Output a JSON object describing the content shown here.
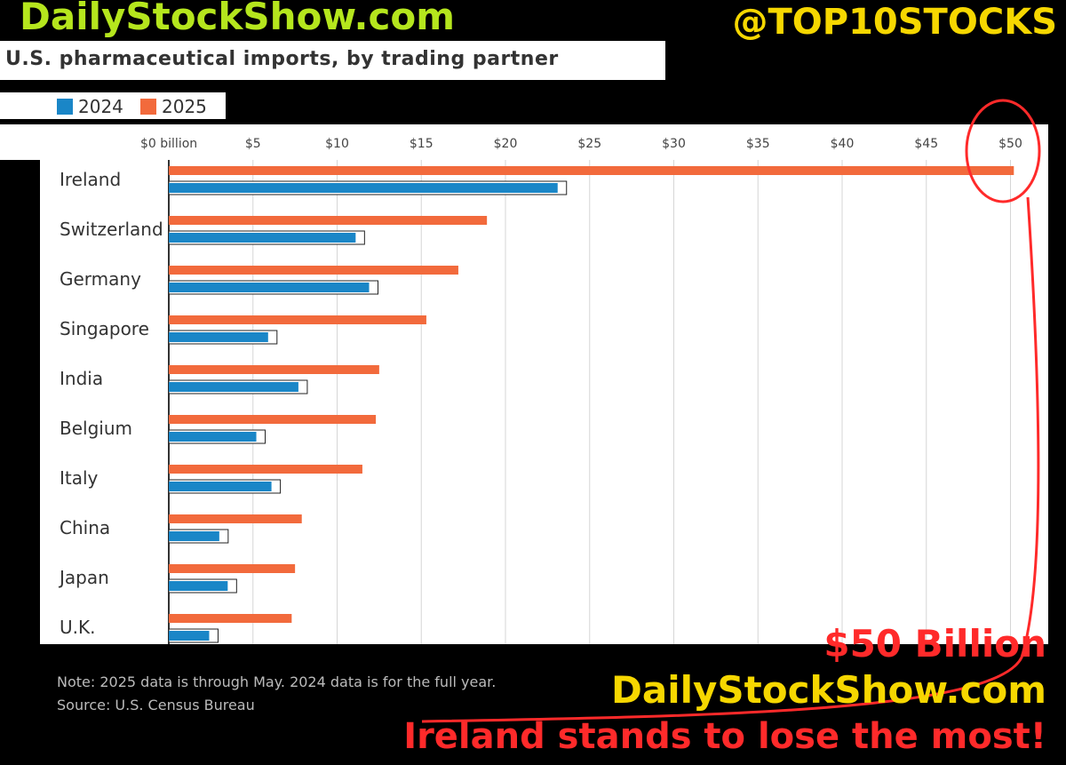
{
  "brand": {
    "site": "DailyStockShow.com",
    "handle": "@TOP10STOCKS"
  },
  "colors": {
    "series_2024": "#1a86c7",
    "series_2025": "#f26a3c",
    "annotation_red": "#ff2a2a",
    "annotation_yellow": "#f6d700",
    "brand_green": "#b5e61d"
  },
  "chart_data": {
    "type": "bar",
    "orientation": "horizontal",
    "title": "U.S. pharmaceutical imports, by trading partner",
    "xlabel": "",
    "ylabel": "",
    "xlim": [
      0,
      52
    ],
    "x_ticks": [
      "$0 billion",
      "$5",
      "$10",
      "$15",
      "$20",
      "$25",
      "$30",
      "$35",
      "$40",
      "$45",
      "$50"
    ],
    "x_tick_values": [
      0,
      5,
      10,
      15,
      20,
      25,
      30,
      35,
      40,
      45,
      50
    ],
    "grid": true,
    "legend_position": "top-left",
    "categories": [
      "Ireland",
      "Switzerland",
      "Germany",
      "Singapore",
      "India",
      "Belgium",
      "Italy",
      "China",
      "Japan",
      "U.K."
    ],
    "series": [
      {
        "name": "2025",
        "values": [
          50.2,
          18.9,
          17.2,
          15.3,
          12.5,
          12.3,
          11.5,
          7.9,
          7.5,
          7.3
        ]
      },
      {
        "name": "2024",
        "values": [
          23.1,
          11.1,
          11.9,
          5.9,
          7.7,
          5.2,
          6.1,
          3.0,
          3.5,
          2.4
        ]
      }
    ],
    "note": "Note: 2025 data is through May. 2024 data is for the full year.",
    "source": "Source: U.S. Census Bureau"
  },
  "annotations": {
    "amount": "$50 Billion",
    "site": "DailyStockShow.com",
    "headline": "Ireland stands to lose the most!"
  }
}
